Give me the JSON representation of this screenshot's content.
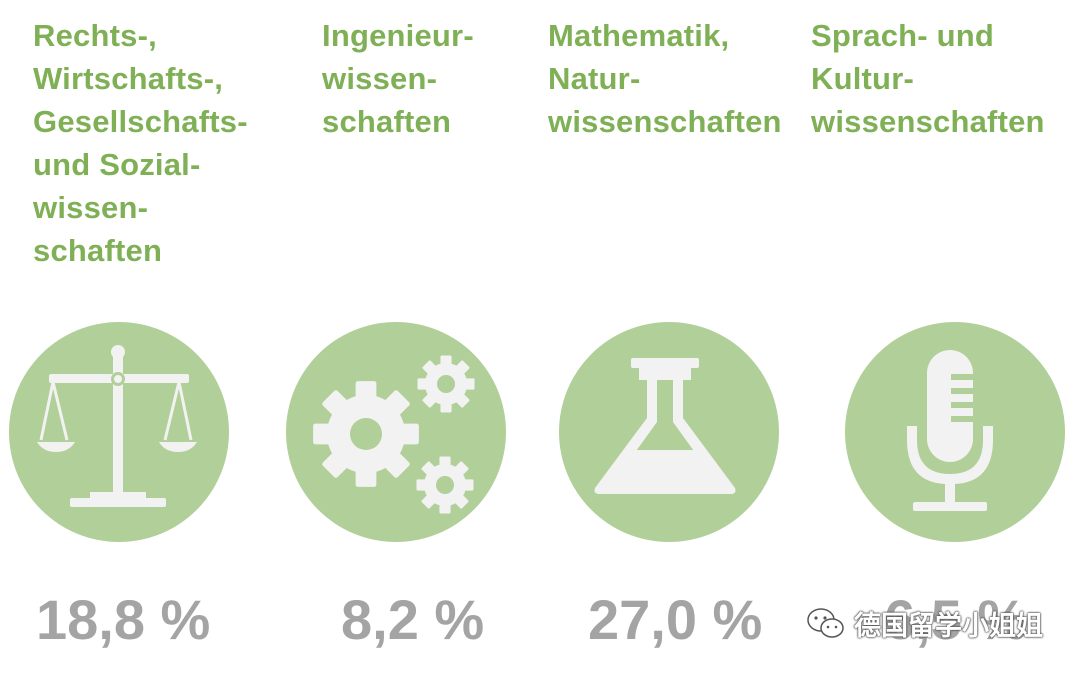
{
  "colors": {
    "title_green": "#7fb056",
    "circle_green": "#b1cf98",
    "percent_gray": "#a4a4a4",
    "icon_white": "#f2f2f2"
  },
  "categories": [
    {
      "title": "Rechts-,\nWirtschafts-,\nGesellschafts-\nund Sozial-\nwissen-\nschaften",
      "icon": "scales-of-justice-icon",
      "percent_label": "18,8 %",
      "percent_value": 18.8
    },
    {
      "title": "Ingenieur-\nwissen-\nschaften",
      "icon": "gears-icon",
      "percent_label": "8,2 %",
      "percent_value": 8.2
    },
    {
      "title": "Mathematik,\nNatur-\nwissenschaften",
      "icon": "lab-flask-icon",
      "percent_label": "27,0 %",
      "percent_value": 27.0
    },
    {
      "title": "Sprach- und\nKultur-\nwissenschaften",
      "icon": "microphone-icon",
      "percent_label": "6,5 %",
      "percent_value": 6.5
    }
  ],
  "watermark": {
    "text": "德国留学小姐姐",
    "icon": "wechat-logo-icon"
  }
}
